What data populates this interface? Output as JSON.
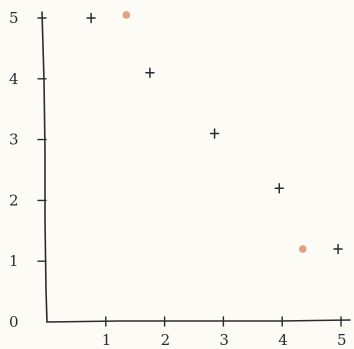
{
  "chart_data": {
    "type": "scatter",
    "title": "",
    "xlabel": "",
    "ylabel": "",
    "xlim": [
      0,
      5
    ],
    "ylim": [
      0,
      5
    ],
    "x_ticks": [
      "1",
      "2",
      "3",
      "4",
      "5"
    ],
    "y_ticks": [
      "0",
      "1",
      "2",
      "3",
      "4",
      "5"
    ],
    "grid": false,
    "series": [
      {
        "marker": "plus",
        "color": "#2b2930",
        "x": [
          0.75,
          1.75,
          2.85,
          3.95,
          4.95
        ],
        "y": [
          5.0,
          4.1,
          3.1,
          2.2,
          1.2
        ]
      },
      {
        "marker": "dot",
        "color": "#e3a07e",
        "x": [
          1.35,
          4.35
        ],
        "y": [
          5.05,
          1.2
        ]
      }
    ]
  }
}
